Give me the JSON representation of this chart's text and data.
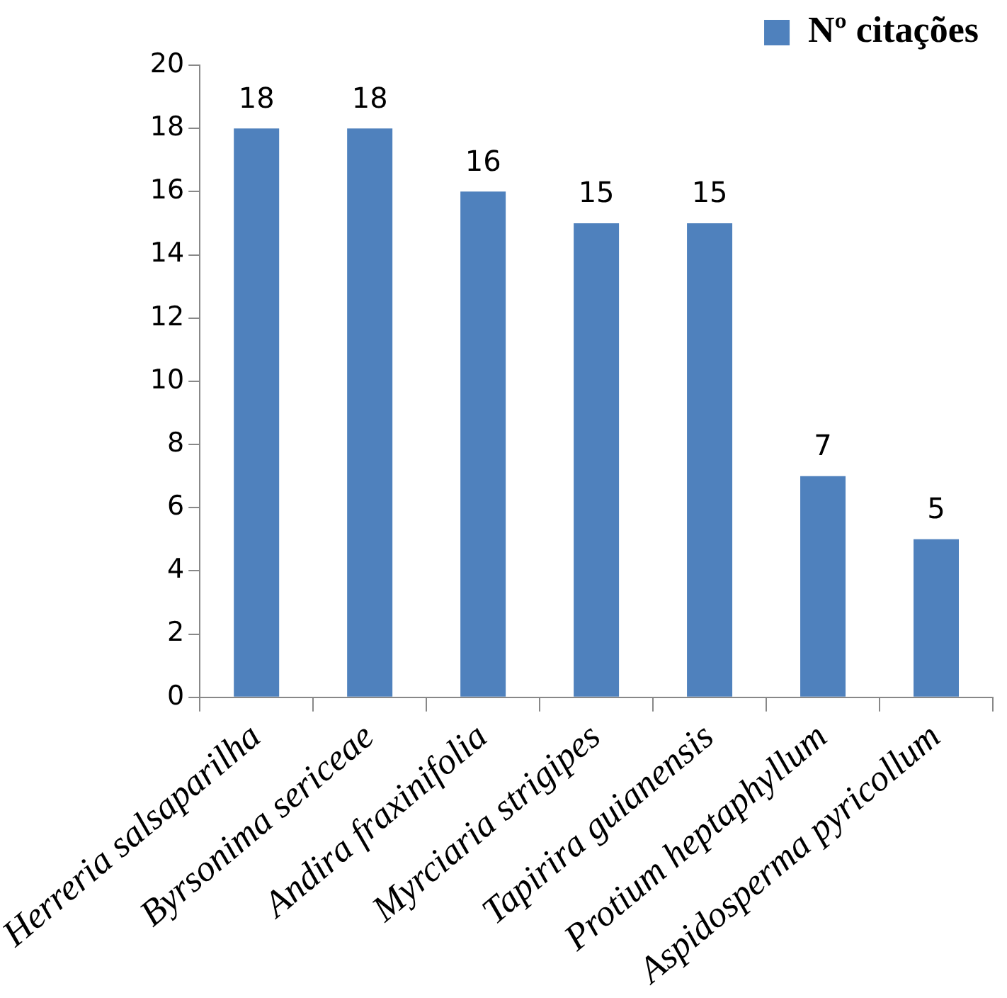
{
  "chart_data": {
    "type": "bar",
    "categories": [
      "Herreria salsaparilha",
      "Byrsonima sericeae",
      "Andira fraxinifolia",
      "Myrciaria strigipes",
      "Tapirira guianensis",
      "Protium heptaphyllum",
      "Aspidosperma pyricollum"
    ],
    "series": [
      {
        "name": "Nº citações",
        "color": "#4f81bd",
        "values": [
          18,
          18,
          16,
          15,
          15,
          7,
          5
        ]
      }
    ],
    "ylim": [
      0,
      20
    ],
    "yticks": [
      0,
      2,
      4,
      6,
      8,
      10,
      12,
      14,
      16,
      18,
      20
    ],
    "grid": false,
    "legend": "top right",
    "data_labels": true
  }
}
